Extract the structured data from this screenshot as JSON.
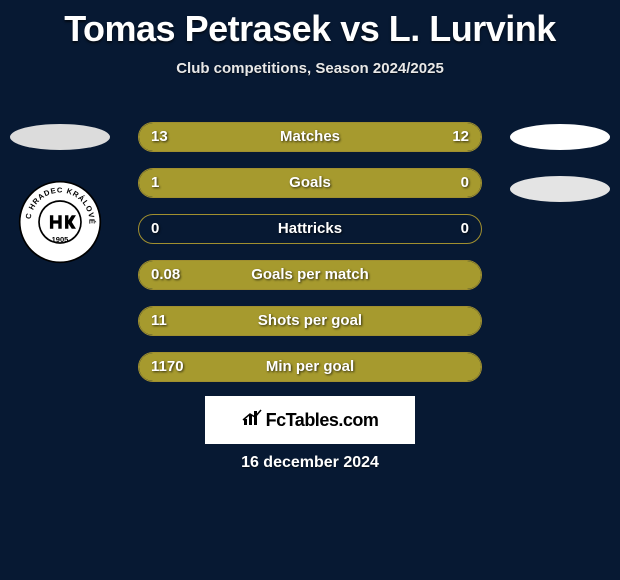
{
  "title": "Tomas Petrasek vs L. Lurvink",
  "subtitle": "Club competitions, Season 2024/2025",
  "date": "16 december 2024",
  "footer_brand": "FcTables.com",
  "colors": {
    "background": "#071933",
    "bar_fill": "#a69a2e",
    "bar_border": "#a08f2f",
    "text": "#ffffff"
  },
  "badge": {
    "name": "FC Hradec Králové",
    "year": "1905",
    "bg": "#ffffff",
    "fg": "#000000"
  },
  "ovals": {
    "left": "#dcdcdc",
    "right_top": "#ffffff",
    "right_bottom": "#e4e4e4"
  },
  "stats": [
    {
      "label": "Matches",
      "left_val": "13",
      "right_val": "12",
      "left_pct": 52,
      "right_pct": 48
    },
    {
      "label": "Goals",
      "left_val": "1",
      "right_val": "0",
      "left_pct": 75,
      "right_pct": 25
    },
    {
      "label": "Hattricks",
      "left_val": "0",
      "right_val": "0",
      "left_pct": 0,
      "right_pct": 0
    },
    {
      "label": "Goals per match",
      "left_val": "0.08",
      "right_val": "",
      "left_pct": 100,
      "right_pct": 0
    },
    {
      "label": "Shots per goal",
      "left_val": "11",
      "right_val": "",
      "left_pct": 100,
      "right_pct": 0
    },
    {
      "label": "Min per goal",
      "left_val": "1170",
      "right_val": "",
      "left_pct": 100,
      "right_pct": 0
    }
  ]
}
